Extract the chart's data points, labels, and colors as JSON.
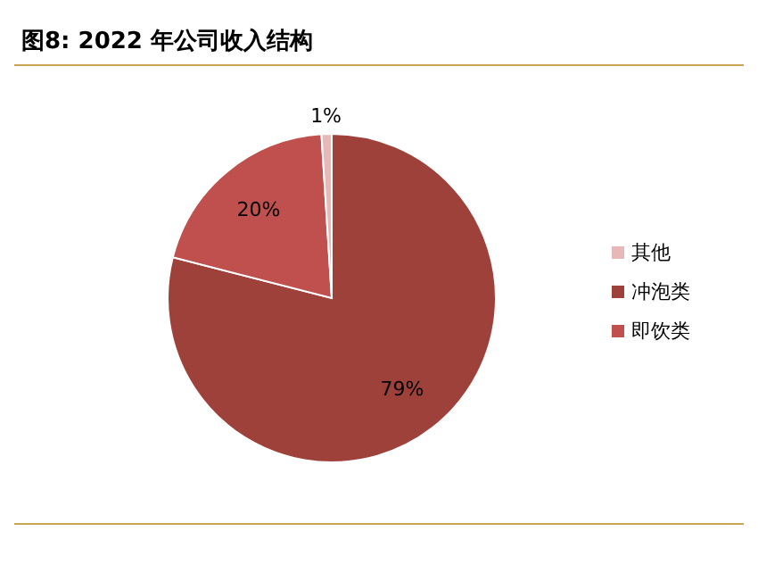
{
  "chart_data": {
    "type": "pie",
    "title": "图8: 2022 年公司收入结构",
    "categories": [
      "冲泡类",
      "即饮类",
      "其他"
    ],
    "values": [
      79,
      20,
      1
    ],
    "colors": [
      "#9e413a",
      "#c0504d",
      "#e6b9b8"
    ],
    "value_labels": [
      "79%",
      "20%",
      "1%"
    ],
    "legend": "right"
  }
}
